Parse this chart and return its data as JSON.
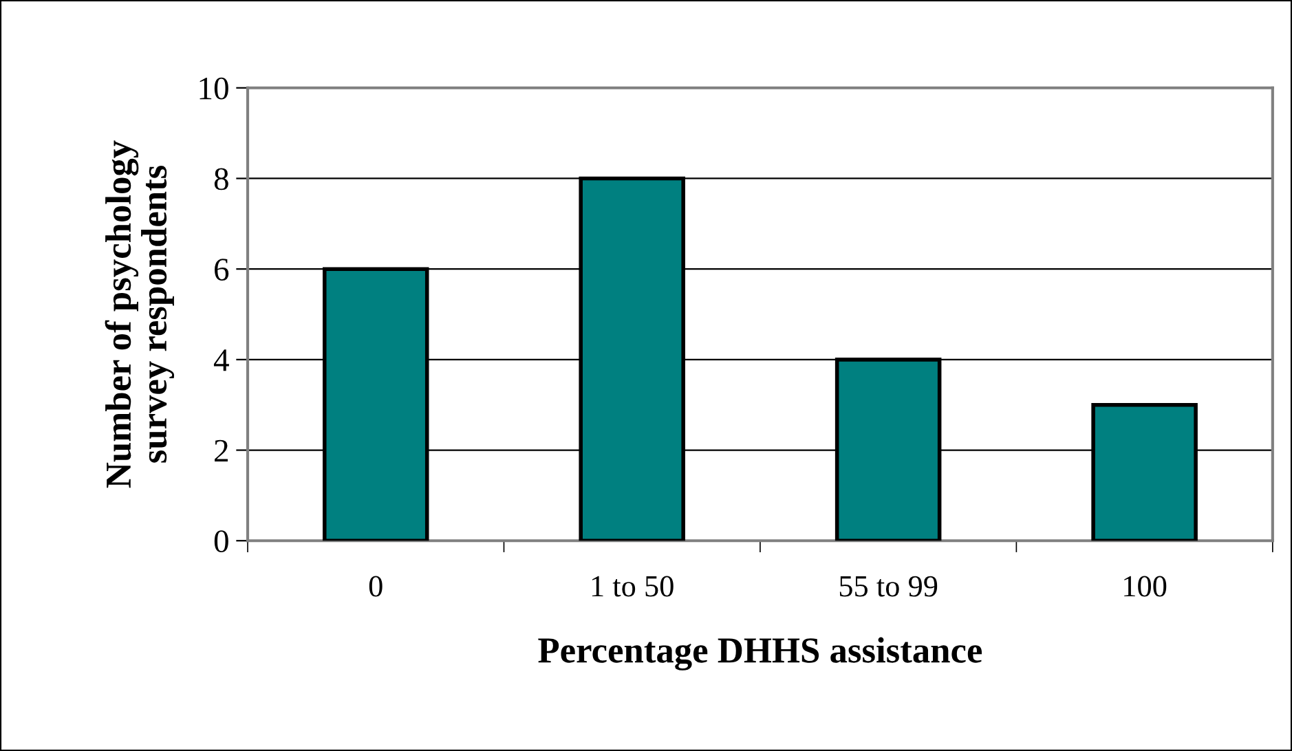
{
  "chart_data": {
    "type": "bar",
    "xlabel": "Percentage DHHS assistance",
    "ylabel": "Number of psychology\nsurvey respondents",
    "categories": [
      "0",
      "1 to 50",
      "55 to 99",
      "100"
    ],
    "values": [
      6,
      8,
      4,
      3
    ],
    "color": "#008080",
    "ylim": [
      0,
      10
    ],
    "yticks": [
      0,
      2,
      4,
      6,
      8,
      10
    ],
    "grid": "y",
    "legend": false
  }
}
